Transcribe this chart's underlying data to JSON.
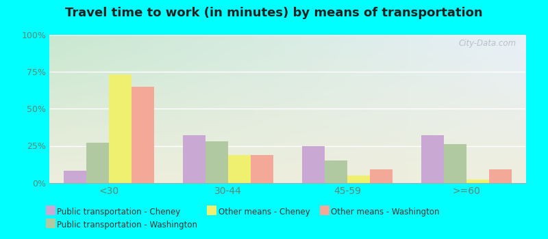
{
  "title": "Travel time to work (in minutes) by means of transportation",
  "categories": [
    "<30",
    "30-44",
    "45-59",
    ">=60"
  ],
  "series_order": [
    "Public transportation - Cheney",
    "Public transportation - Washington",
    "Other means - Cheney",
    "Other means - Washington"
  ],
  "series": {
    "Public transportation - Cheney": [
      8,
      32,
      25,
      32
    ],
    "Public transportation - Washington": [
      27,
      28,
      15,
      26
    ],
    "Other means - Cheney": [
      73,
      19,
      5,
      2
    ],
    "Other means - Washington": [
      65,
      19,
      9,
      9
    ]
  },
  "colors": {
    "Public transportation - Cheney": "#c9a8d4",
    "Public transportation - Washington": "#b0c9a0",
    "Other means - Cheney": "#f0f070",
    "Other means - Washington": "#f4a898"
  },
  "ylim": [
    0,
    100
  ],
  "yticks": [
    0,
    25,
    50,
    75,
    100
  ],
  "ytick_labels": [
    "0%",
    "25%",
    "50%",
    "75%",
    "100%"
  ],
  "outer_background": "#00ffff",
  "tick_color": "#5a8a7a",
  "title_color": "#222222",
  "title_fontsize": 13,
  "watermark": "City-Data.com",
  "bg_top_left": "#c8e8d0",
  "bg_bottom_right": "#eeeedd"
}
